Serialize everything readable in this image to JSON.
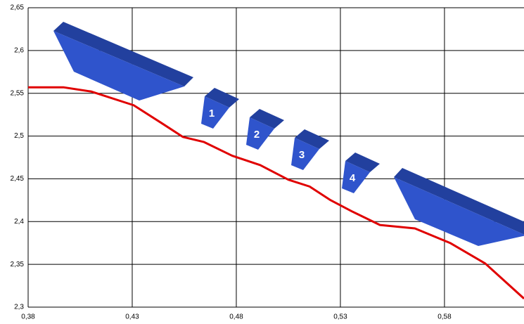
{
  "chart_data": {
    "type": "line",
    "x": [
      0.38,
      0.3969,
      0.4104,
      0.4307,
      0.4442,
      0.4543,
      0.4645,
      0.478,
      0.4915,
      0.505,
      0.5152,
      0.5253,
      0.5355,
      0.549,
      0.5658,
      0.5827,
      0.5996,
      0.6182
    ],
    "series": [
      {
        "color": "#e00000",
        "values": [
          2.557,
          2.557,
          2.552,
          2.536,
          2.515,
          2.499,
          2.493,
          2.477,
          2.466,
          2.449,
          2.441,
          2.425,
          2.412,
          2.396,
          2.392,
          2.375,
          2.351,
          2.31
        ]
      }
    ],
    "xlim": [
      0.38,
      0.6182
    ],
    "ylim": [
      2.3,
      2.65
    ],
    "xticks": [
      {
        "value": 0.38,
        "label": "0,38"
      },
      {
        "value": 0.43,
        "label": "0,43"
      },
      {
        "value": 0.48,
        "label": "0,48"
      },
      {
        "value": 0.53,
        "label": "0,53"
      },
      {
        "value": 0.58,
        "label": "0,58"
      }
    ],
    "yticks": [
      {
        "value": 2.3,
        "label": "2,3"
      },
      {
        "value": 2.35,
        "label": "2,35"
      },
      {
        "value": 2.4,
        "label": "2,4"
      },
      {
        "value": 2.45,
        "label": "2,45"
      },
      {
        "value": 2.5,
        "label": "2,5"
      },
      {
        "value": 2.55,
        "label": "2,55"
      },
      {
        "value": 2.6,
        "label": "2,6"
      },
      {
        "value": 2.65,
        "label": "2,65"
      }
    ],
    "grid": true,
    "annotations": [
      "1",
      "2",
      "3",
      "4"
    ]
  }
}
